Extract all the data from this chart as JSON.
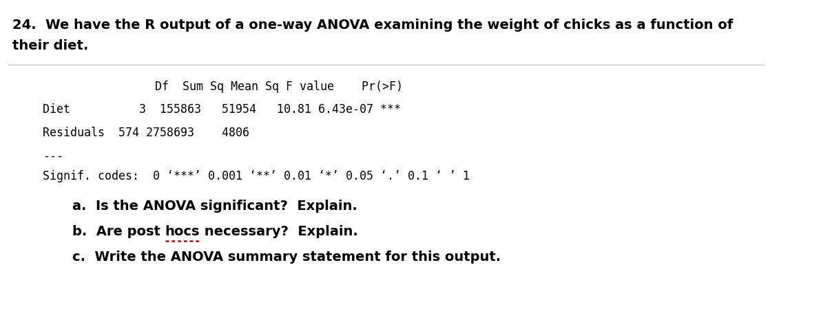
{
  "title_line1": "24.  We have the R output of a one-way ANOVA examining the weight of chicks as a function of",
  "title_line2": "their diet.",
  "header_text": "         Df  Sum Sq Mean Sq F value    Pr(>F)",
  "diet_text": "Diet          3  155863   51954   10.81 6.43e-07 ***",
  "resid_text": "Residuals  574 2758693    4806",
  "sep_text": "---",
  "signif_text": "Signif. codes:  0 ‘***’ 0.001 ‘**’ 0.01 ‘*’ 0.05 ‘.’ 0.1 ‘ ’ 1",
  "qa_text": "a.  Is the ANOVA significant?  Explain.",
  "qb_pre": "b.  Are post hocs necessary?  Explain.",
  "qb_part1": "b.  Are post ",
  "qb_hocs": "hocs",
  "qb_part2": " necessary?  Explain.",
  "qc_text": "c.  Write the ANOVA summary statement for this output.",
  "mono_fontsize": 12.0,
  "title_fontsize": 14.0,
  "q_fontsize": 14.0,
  "bg_color": "#ffffff",
  "text_color": "#000000",
  "line_color": "#c0c0c0",
  "hocs_underline_color": "#cc0000",
  "fig_width": 11.92,
  "fig_height": 4.62,
  "dpi": 100
}
